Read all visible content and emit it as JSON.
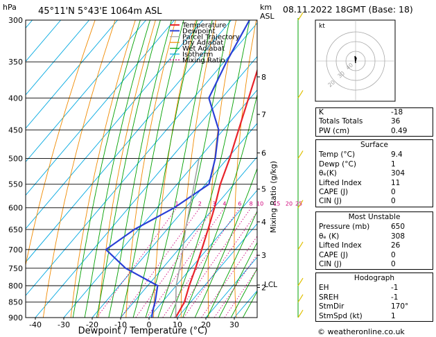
{
  "header": {
    "location": "45°11'N  5°43'E  1064m  ASL",
    "datetime": "08.11.2022  18GMT  (Base: 18)",
    "credit": "© weatheronline.co.uk"
  },
  "chart_data": {
    "type": "line",
    "subtype": "skew-T log-P diagram",
    "xlabel": "Dewpoint / Temperature (°C)",
    "ylabel": "hPa",
    "right_axis_unit": "km ASL",
    "mixing_axis_label": "Mixing Ratio (g/kg)",
    "x_ticks": [
      -40,
      -30,
      -20,
      -10,
      0,
      10,
      20,
      30
    ],
    "pressure_levels": [
      300,
      350,
      400,
      450,
      500,
      550,
      600,
      650,
      700,
      750,
      800,
      850,
      900
    ],
    "height_ticks": [
      {
        "label": "8",
        "p": 370
      },
      {
        "label": "7",
        "p": 425
      },
      {
        "label": "6",
        "p": 490
      },
      {
        "label": "5",
        "p": 560
      },
      {
        "label": "4",
        "p": 632
      },
      {
        "label": "3",
        "p": 715
      },
      {
        "label": "2",
        "p": 805
      }
    ],
    "lcl": {
      "label": "LCL",
      "p": 798
    },
    "mixing_ratio_labels": [
      "1",
      "2",
      "3",
      "4",
      "6",
      "8",
      "10",
      "15",
      "20",
      "25"
    ],
    "mixing_ratio_values": [
      1,
      2,
      3,
      4,
      6,
      8,
      10,
      15,
      20,
      25
    ],
    "legend": [
      "Temperature",
      "Dewpoint",
      "Parcel Trajectory",
      "Dry Adiabat",
      "Wet Adiabat",
      "Isotherm",
      "Mixing Ratio"
    ],
    "colors": {
      "temperature": "#e8232a",
      "dewpoint": "#2a3fd6",
      "parcel": "#a0a0a0",
      "dry_adiabat": "#f08a00",
      "wet_adiabat": "#00a000",
      "isotherm": "#00a8e0",
      "mixing_ratio": "#d0007a"
    },
    "series": [
      {
        "name": "Temperature",
        "points": [
          [
            900,
            9.4
          ],
          [
            850,
            7.8
          ],
          [
            800,
            4.6
          ],
          [
            750,
            1.6
          ],
          [
            700,
            -1.8
          ],
          [
            650,
            -5.6
          ],
          [
            600,
            -9.8
          ],
          [
            550,
            -14.8
          ],
          [
            500,
            -19.2
          ],
          [
            450,
            -24.6
          ],
          [
            400,
            -30.6
          ],
          [
            350,
            -37.4
          ],
          [
            300,
            -45.6
          ]
        ]
      },
      {
        "name": "Dewpoint",
        "points": [
          [
            900,
            1
          ],
          [
            880,
            -0.6
          ],
          [
            850,
            -2.5
          ],
          [
            800,
            -6.5
          ],
          [
            750,
            -23
          ],
          [
            700,
            -35.5
          ],
          [
            650,
            -31.5
          ],
          [
            600,
            -24
          ],
          [
            550,
            -18.8
          ],
          [
            500,
            -24.3
          ],
          [
            450,
            -31.6
          ],
          [
            400,
            -44.6
          ],
          [
            350,
            -49.2
          ],
          [
            300,
            -53.6
          ]
        ]
      },
      {
        "name": "Parcel Trajectory",
        "points": [
          [
            900,
            9.4
          ],
          [
            850,
            4.8
          ],
          [
            800,
            0
          ],
          [
            750,
            -4
          ],
          [
            700,
            -8.5
          ],
          [
            650,
            -13.5
          ],
          [
            600,
            -18.5
          ],
          [
            550,
            -24
          ],
          [
            500,
            -30
          ]
        ]
      }
    ]
  },
  "indices": [
    {
      "label": "K",
      "value": "-18"
    },
    {
      "label": "Totals Totals",
      "value": "36"
    },
    {
      "label": "PW (cm)",
      "value": "0.49"
    }
  ],
  "surface": {
    "title": "Surface",
    "rows": [
      {
        "label": "Temp (°C)",
        "value": "9.4"
      },
      {
        "label": "Dewp (°C)",
        "value": "1"
      },
      {
        "label": "θₑ(K)",
        "value": "304"
      },
      {
        "label": "Lifted Index",
        "value": "11"
      },
      {
        "label": "CAPE (J)",
        "value": "0"
      },
      {
        "label": "CIN (J)",
        "value": "0"
      }
    ]
  },
  "most_unstable": {
    "title": "Most Unstable",
    "rows": [
      {
        "label": "Pressure (mb)",
        "value": "650"
      },
      {
        "label": "θₑ (K)",
        "value": "308"
      },
      {
        "label": "Lifted Index",
        "value": "26"
      },
      {
        "label": "CAPE (J)",
        "value": "0"
      },
      {
        "label": "CIN (J)",
        "value": "0"
      }
    ]
  },
  "hodograph_table": {
    "title": "Hodograph",
    "rows": [
      {
        "label": "EH",
        "value": "-1"
      },
      {
        "label": "SREH",
        "value": "-1"
      },
      {
        "label": "StmDir",
        "value": "170°"
      },
      {
        "label": "StmSpd (kt)",
        "value": "1"
      }
    ]
  },
  "hodograph": {
    "unit_label": "kt",
    "ring_labels": [
      "20",
      "30",
      "40"
    ]
  }
}
